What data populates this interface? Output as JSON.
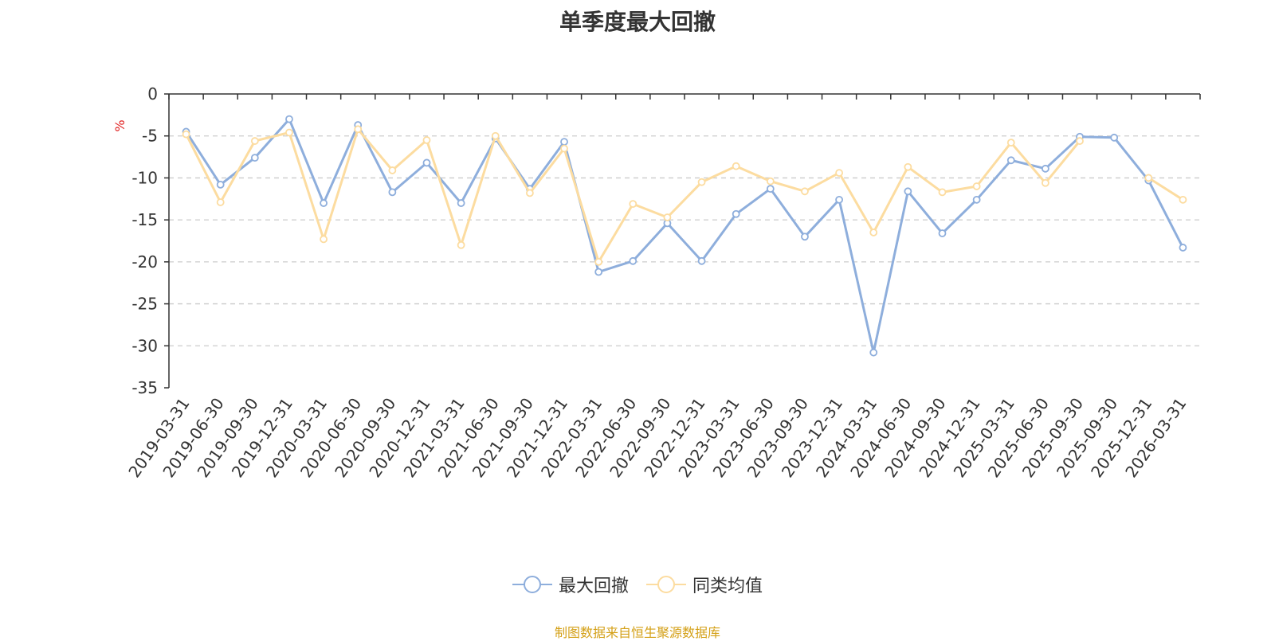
{
  "chart_data": {
    "type": "line",
    "title": "单季度最大回撤",
    "ylabel": "%",
    "ylim": [
      -35,
      0
    ],
    "yticks": [
      0,
      -5,
      -10,
      -15,
      -20,
      -25,
      -30,
      -35
    ],
    "grid": true,
    "legend_position": "bottom",
    "categories": [
      "2019-03-31",
      "2019-06-30",
      "2019-09-30",
      "2019-12-31",
      "2020-03-31",
      "2020-06-30",
      "2020-09-30",
      "2020-12-31",
      "2021-03-31",
      "2021-06-30",
      "2021-09-30",
      "2021-12-31",
      "2022-03-31",
      "2022-06-30",
      "2022-09-30",
      "2022-12-31",
      "2023-03-31",
      "2023-06-30",
      "2023-09-30",
      "2023-12-31",
      "2024-03-31",
      "2024-06-30",
      "2024-09-30",
      "2024-12-31",
      "2025-03-31",
      "2025-06-30",
      "2025-09-30",
      "2025-09-30",
      "2025-12-31",
      "2026-03-31"
    ],
    "series": [
      {
        "name": "最大回撤",
        "color": "#8eaedc",
        "values": [
          -4.5,
          -10.8,
          -7.6,
          -3.0,
          -13.0,
          -3.7,
          -11.7,
          -8.2,
          -13.0,
          -5.3,
          -11.3,
          -5.7,
          -21.2,
          -19.9,
          -15.4,
          -19.9,
          -14.3,
          -11.3,
          -17.0,
          -12.6,
          -30.8,
          -11.6,
          -16.6,
          -12.6,
          -7.9,
          -8.9,
          -5.1,
          -5.2,
          -10.3,
          -18.3
        ]
      },
      {
        "name": "同类均值",
        "color": "#fcdca0",
        "values": [
          -4.8,
          -12.9,
          -5.6,
          -4.6,
          -17.3,
          -4.2,
          -9.1,
          -5.5,
          -18.0,
          -5.0,
          -11.8,
          -6.5,
          -20.0,
          -13.1,
          -14.7,
          -10.5,
          -8.6,
          -10.4,
          -11.6,
          -9.4,
          -16.5,
          -8.7,
          -11.7,
          -11.0,
          -5.8,
          -10.6,
          -5.6,
          null,
          -10.0,
          -12.6
        ]
      }
    ]
  },
  "source_note": "制图数据来自恒生聚源数据库"
}
